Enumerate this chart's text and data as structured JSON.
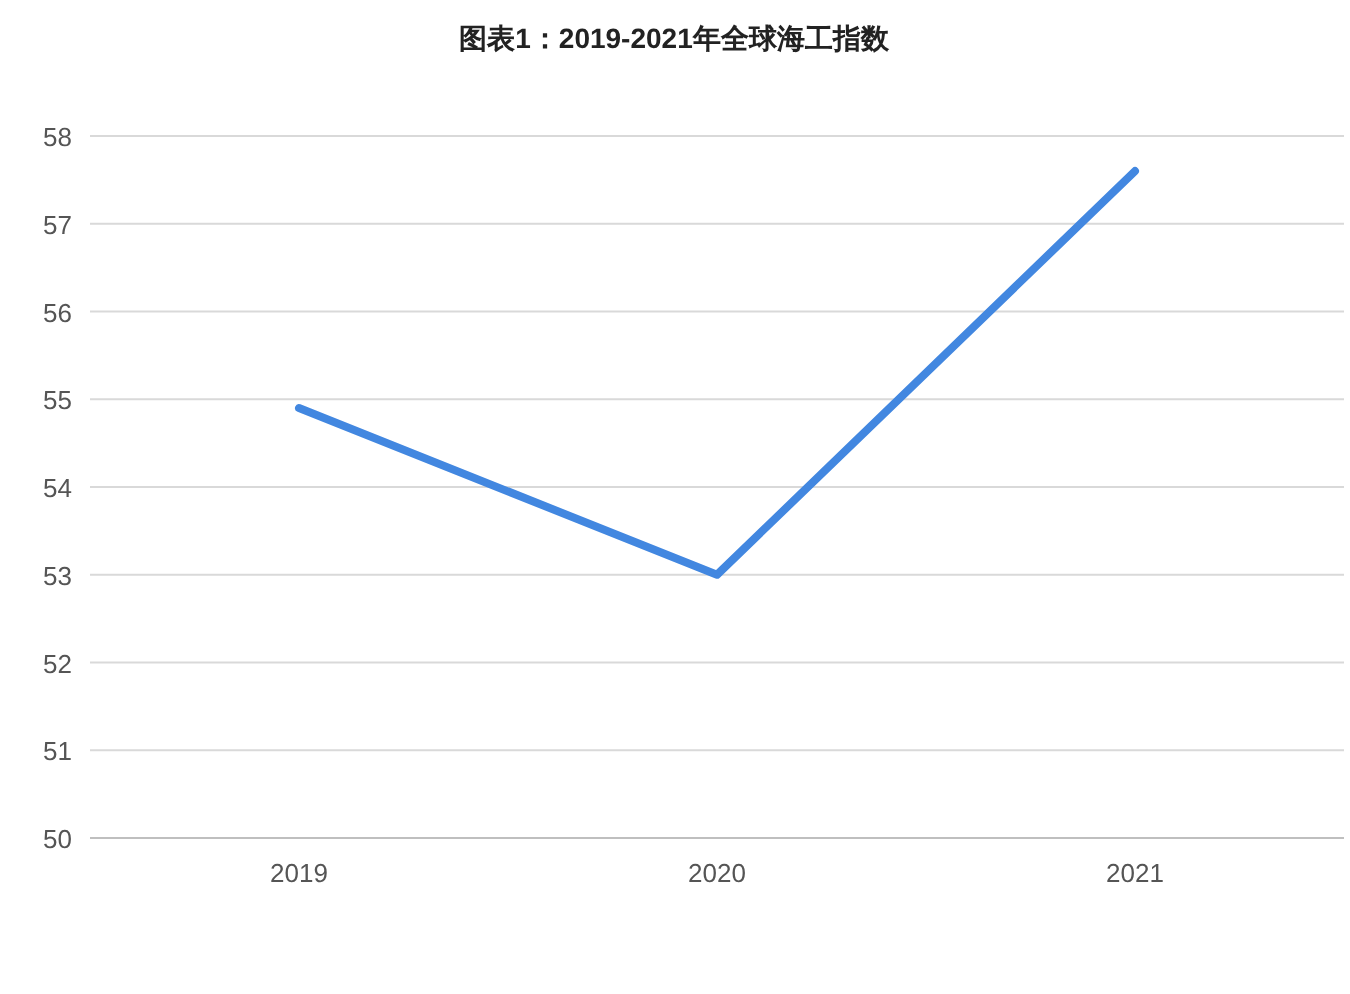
{
  "chart_data": {
    "type": "line",
    "title": "图表1：2019-2021年全球海工指数",
    "categories": [
      "2019",
      "2020",
      "2021"
    ],
    "series": [
      {
        "color": "#4287e0",
        "values": [
          54.9,
          53.0,
          57.6
        ]
      }
    ],
    "ylim": [
      50,
      58
    ],
    "yticks": [
      50,
      51,
      52,
      53,
      54,
      55,
      56,
      57,
      58
    ],
    "grid": "y",
    "marker": "none",
    "line_style": "solid"
  }
}
